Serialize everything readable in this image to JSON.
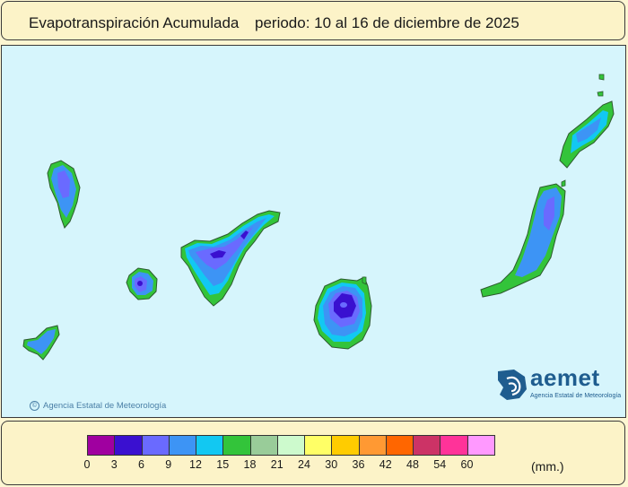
{
  "title": {
    "variable": "Evapotranspiración Acumulada",
    "period": "periodo: 10 al 16 de diciembre de 2025"
  },
  "copyright": "Agencia Estatal de Meteorología",
  "logo": {
    "name": "aemet",
    "subtitle": "Agencia Estatal de Meteorología",
    "icon": "aemet-logo-icon"
  },
  "legend": {
    "units": "(mm.)",
    "ticks": [
      "0",
      "3",
      "6",
      "9",
      "12",
      "15",
      "18",
      "21",
      "24",
      "30",
      "36",
      "42",
      "48",
      "54",
      "60"
    ],
    "colors": [
      "#a000a0",
      "#3a10d0",
      "#6a6aff",
      "#3d94f5",
      "#12c8f2",
      "#33c43a",
      "#99cc99",
      "#cdfacd",
      "#ffff66",
      "#ffcc00",
      "#ff9933",
      "#ff6600",
      "#cc3366",
      "#ff3399",
      "#ff99ff"
    ]
  },
  "colors": {
    "sea": "#d6f5fc",
    "panel": "#fcf3c8"
  }
}
